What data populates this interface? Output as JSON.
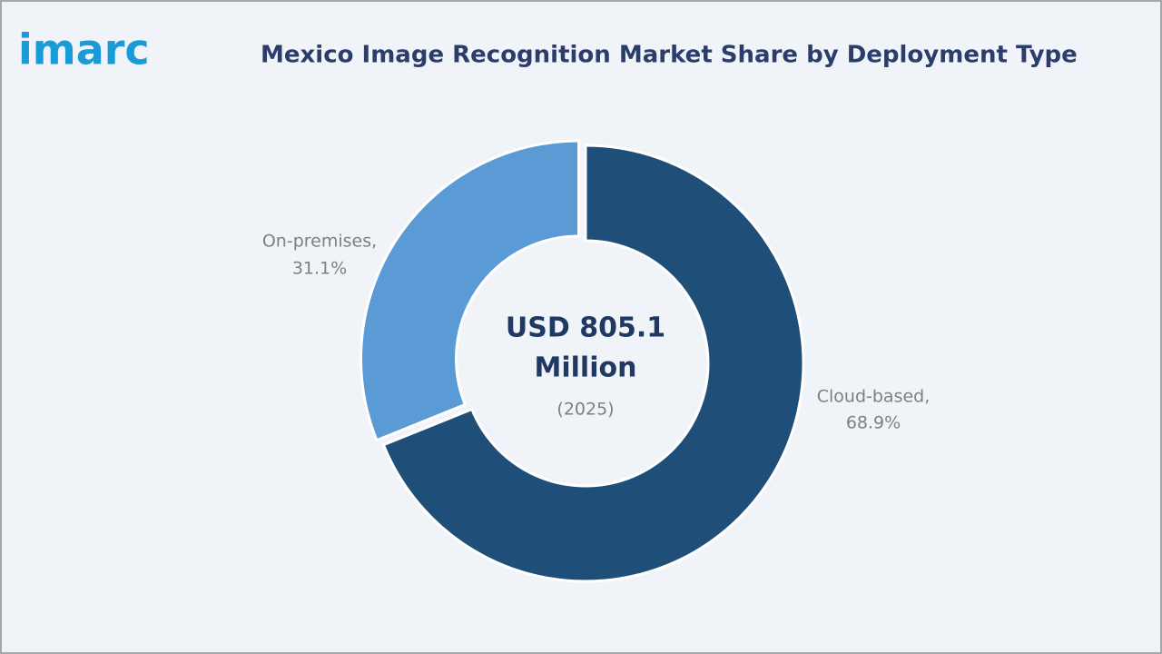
{
  "logo": "imarc",
  "chart_data": {
    "type": "donut",
    "title": "Mexico Image Recognition Market Share by Deployment Type",
    "center_text": [
      "USD 805.1",
      "Million"
    ],
    "center_subtext": "(2025)",
    "categories": [
      "Cloud-based,",
      "On-premises,"
    ],
    "values": [
      68.9,
      31.1
    ],
    "value_labels": [
      "68.9%",
      "31.1%"
    ],
    "colors": [
      "#1f4e79",
      "#5b9bd5"
    ]
  }
}
